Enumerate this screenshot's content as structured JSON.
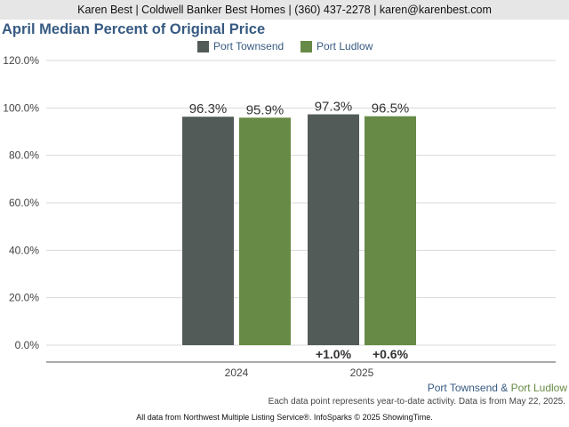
{
  "header": {
    "contact": "Karen Best | Coldwell Banker Best Homes | (360) 437-2278 | karen@karenbest.com"
  },
  "colors": {
    "port_townsend": "#535b58",
    "port_ludlow": "#678a46",
    "title": "#375a82",
    "grid": "#d9d9d9"
  },
  "chart_data": {
    "type": "bar",
    "title": "April Median Percent of Original Price",
    "categories": [
      "2024",
      "2025"
    ],
    "series": [
      {
        "name": "Port Townsend",
        "values": [
          96.3,
          97.3
        ],
        "labels": [
          "96.3%",
          "97.3%"
        ]
      },
      {
        "name": "Port Ludlow",
        "values": [
          95.9,
          96.5
        ],
        "labels": [
          "95.9%",
          "96.5%"
        ]
      }
    ],
    "change_labels": {
      "Port Townsend": [
        null,
        "+1.0%"
      ],
      "Port Ludlow": [
        null,
        "+0.6%"
      ]
    },
    "ylim": [
      0,
      120
    ],
    "yticks": [
      "0.0%",
      "20.0%",
      "40.0%",
      "60.0%",
      "80.0%",
      "100.0%",
      "120.0%"
    ],
    "grid": true,
    "legend": "top-center"
  },
  "footer": {
    "areas_a": "Port Townsend",
    "amp": "&",
    "areas_b": "Port Ludlow",
    "note": "Each data point represents year-to-date activity. Data is from May 22, 2025.",
    "source": "All data from Northwest Multiple Listing Service®. InfoSparks © 2025 ShowingTime."
  }
}
